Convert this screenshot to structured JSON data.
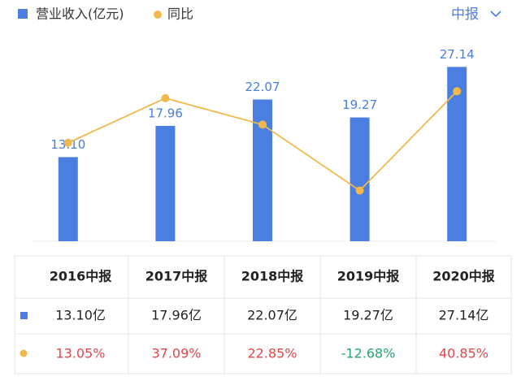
{
  "chart_data": {
    "type": "bar_line",
    "categories": [
      "2016中报",
      "2017中报",
      "2018中报",
      "2019中报",
      "2020中报"
    ],
    "period_selector": "中报",
    "series": [
      {
        "name": "营业收入(亿元)",
        "type": "bar",
        "color": "#4a7ee0",
        "values": [
          13.1,
          17.96,
          22.07,
          19.27,
          27.14
        ],
        "value_labels": [
          "13.10",
          "17.96",
          "22.07",
          "19.27",
          "27.14"
        ],
        "table_labels": [
          "13.10亿",
          "17.96亿",
          "22.07亿",
          "19.27亿",
          "27.14亿"
        ]
      },
      {
        "name": "同比",
        "type": "line",
        "axis": "y2",
        "color": "#f2b84b",
        "values": [
          13.05,
          37.09,
          22.85,
          -12.68,
          40.85
        ],
        "value_labels": [
          "13.05%",
          "37.09%",
          "22.85%",
          "-12.68%",
          "40.85%"
        ]
      }
    ],
    "ylim": [
      0,
      32.5
    ],
    "y2lim": [
      -40,
      72.5
    ],
    "positive_color": "#e0474c",
    "negative_color": "#23a66f"
  }
}
